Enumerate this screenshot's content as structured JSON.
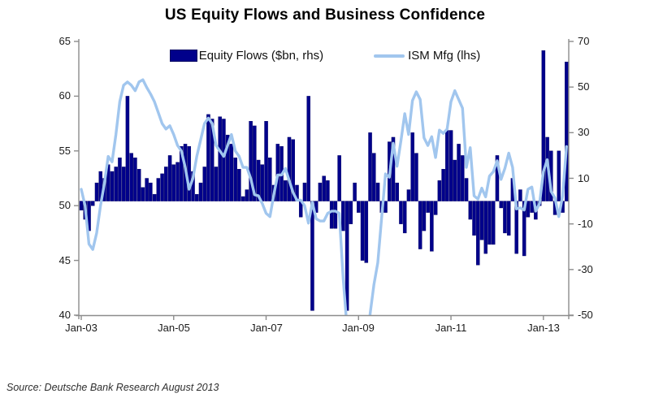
{
  "title": "US Equity Flows and Business Confidence",
  "source": "Source: Deutsche Bank Research August 2013",
  "legend": {
    "items": [
      {
        "label": "Equity Flows ($bn, rhs)",
        "type": "bar",
        "color": "#00008B"
      },
      {
        "label": "ISM Mfg (lhs)",
        "type": "line",
        "color": "#A1C6EE"
      }
    ]
  },
  "colors": {
    "bar_fill": "#00008B",
    "bar_edge": "#000060",
    "line": "#A1C6EE",
    "axis": "#8c8c8c",
    "text": "#1a1a1a",
    "background": "#ffffff"
  },
  "chart_data": {
    "type": "bar",
    "subtype": "combo-bar-line-dual-axis",
    "title": "US Equity Flows and Business Confidence",
    "x_start": "Jan-03",
    "x_end": "Jul-13",
    "x_frequency": "monthly",
    "x_tick_labels": [
      "Jan-03",
      "Jan-05",
      "Jan-07",
      "Jan-09",
      "Jan-11",
      "Jan-13"
    ],
    "x_tick_month_indices": [
      0,
      24,
      48,
      72,
      96,
      120
    ],
    "axes": {
      "left": {
        "label": "ISM Mfg (lhs)",
        "min": 40,
        "max": 65,
        "ticks": [
          65,
          60,
          55,
          50,
          45,
          40
        ]
      },
      "right": {
        "label": "Equity Flows ($bn, rhs)",
        "min": -50,
        "max": 70,
        "ticks": [
          70,
          50,
          30,
          10,
          -10,
          -30,
          -50
        ]
      }
    },
    "grid": false,
    "legend_position": "top",
    "series": [
      {
        "name": "Equity Flows ($bn, rhs)",
        "type": "bar",
        "axis": "right",
        "color": "#00008B",
        "values": [
          -4,
          -8,
          -13,
          -2,
          8,
          13,
          10,
          16,
          13,
          15,
          19,
          15,
          46,
          21,
          19,
          14,
          6,
          10,
          8,
          3,
          10,
          12,
          15,
          20,
          16,
          17,
          24,
          25,
          24,
          13,
          3,
          8,
          15,
          38,
          36,
          15,
          37,
          36,
          29,
          25,
          19,
          14,
          2,
          5,
          35,
          33,
          18,
          16,
          35,
          19,
          7,
          25,
          24,
          9,
          28,
          27,
          7,
          -7,
          8,
          46,
          -48,
          -5,
          8,
          11,
          9,
          -12,
          -12,
          20,
          -13,
          -48,
          -10,
          8,
          -5,
          -26,
          -27,
          30,
          21,
          8,
          -5,
          -5,
          26,
          28,
          8,
          -10,
          -14,
          5,
          30,
          21,
          -21,
          -13,
          -5,
          -22,
          -6,
          9,
          14,
          31,
          31,
          18,
          25,
          20,
          10,
          -8,
          -15,
          -28,
          -17,
          -23,
          -19,
          -19,
          20,
          -3,
          -14,
          -15,
          10,
          -23,
          5,
          -24,
          -7,
          -5,
          -8,
          -2,
          66,
          28,
          22,
          -6,
          22,
          -5,
          61
        ]
      },
      {
        "name": "ISM Mfg (lhs)",
        "type": "line",
        "axis": "left",
        "color": "#A1C6EE",
        "values": [
          51.5,
          50.0,
          46.5,
          46.0,
          47.5,
          50.0,
          52.0,
          54.5,
          54.0,
          56.5,
          59.5,
          61.0,
          61.3,
          61.0,
          60.5,
          61.3,
          61.5,
          60.8,
          60.2,
          59.5,
          58.5,
          57.5,
          57.0,
          57.3,
          56.5,
          55.5,
          55.0,
          53.5,
          51.5,
          52.5,
          54.5,
          56.0,
          57.5,
          58.0,
          57.5,
          55.5,
          55.0,
          54.5,
          55.5,
          56.5,
          55.0,
          54.5,
          53.5,
          53.5,
          52.5,
          51.0,
          50.9,
          50.2,
          49.3,
          49.0,
          51.0,
          52.8,
          52.8,
          53.4,
          52.3,
          51.2,
          50.5,
          50.5,
          50.0,
          48.4,
          50.3,
          48.8,
          48.6,
          48.6,
          49.3,
          49.5,
          49.5,
          49.3,
          43.4,
          38.9,
          36.6,
          32.9,
          35.6,
          35.8,
          36.3,
          40.1,
          42.8,
          44.8,
          48.9,
          52.9,
          52.6,
          55.7,
          53.6,
          55.9,
          58.4,
          56.5,
          59.6,
          60.4,
          59.7,
          56.2,
          55.5,
          56.3,
          54.4,
          56.9,
          56.6,
          57.0,
          59.5,
          60.5,
          59.7,
          58.9,
          53.5,
          55.3,
          50.9,
          50.6,
          51.6,
          50.8,
          52.7,
          53.1,
          54.1,
          52.4,
          53.4,
          54.8,
          53.5,
          49.7,
          49.8,
          49.6,
          51.5,
          51.7,
          49.5,
          50.2,
          53.1,
          54.2,
          51.3,
          50.7,
          49.0,
          50.9,
          55.4
        ]
      }
    ]
  }
}
